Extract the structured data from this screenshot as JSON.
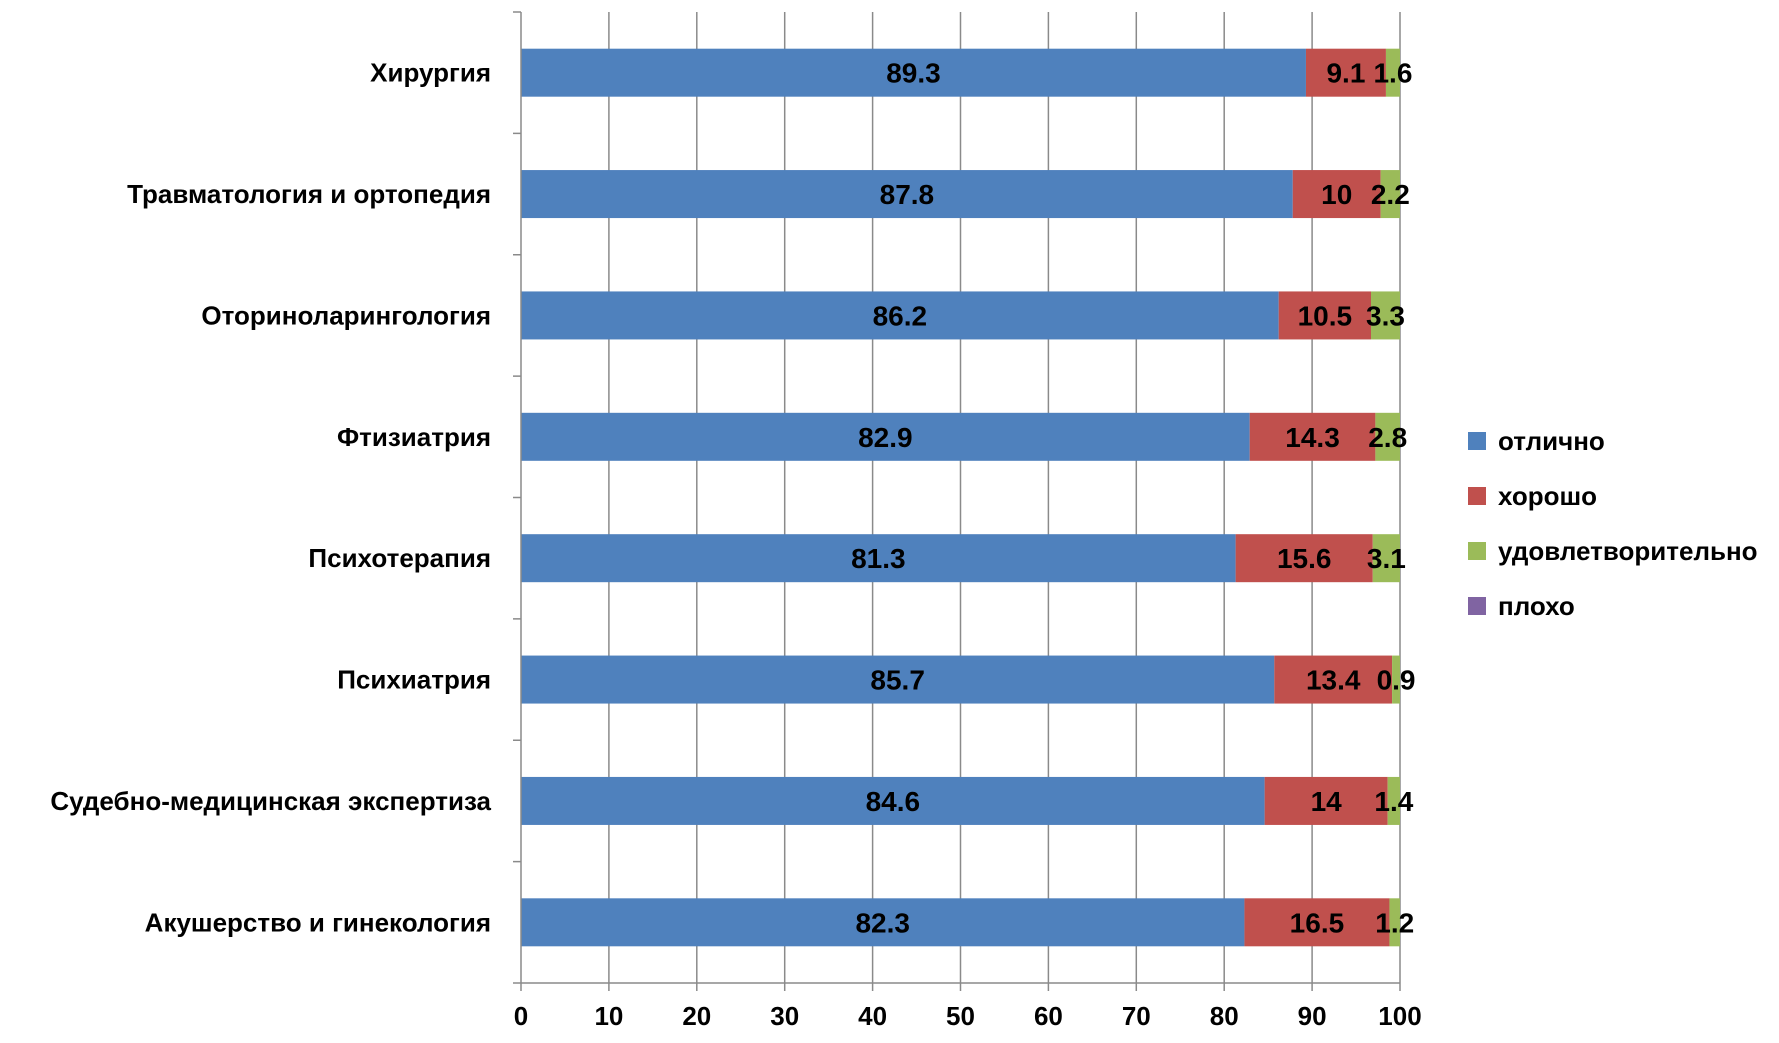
{
  "chart_data": {
    "type": "bar",
    "orientation": "horizontal",
    "stacked": true,
    "title": "",
    "xlabel": "",
    "ylabel": "",
    "xlim": [
      0,
      100
    ],
    "x_ticks": [
      "0",
      "10",
      "20",
      "30",
      "40",
      "50",
      "60",
      "70",
      "80",
      "90",
      "100"
    ],
    "grid": "vertical",
    "legend_position": "right",
    "categories": [
      "Хирургия",
      "Травматология и ортопедия",
      "Оториноларингология",
      "Фтизиатрия",
      "Психотерапия",
      "Психиатрия",
      "Судебно-медицинская экспертиза",
      "Акушерство и гинекология"
    ],
    "series": [
      {
        "name": "отлично",
        "color": "#4F81BD",
        "values": [
          89.3,
          87.8,
          86.2,
          82.9,
          81.3,
          85.7,
          84.6,
          82.3
        ],
        "labels": [
          "89.3",
          "87.8",
          "86.2",
          "82.9",
          "81.3",
          "85.7",
          "84.6",
          "82.3"
        ]
      },
      {
        "name": "хорошо",
        "color": "#C0504D",
        "values": [
          9.1,
          10,
          10.5,
          14.3,
          15.6,
          13.4,
          14,
          16.5
        ],
        "labels": [
          "9.1",
          "10",
          "10.5",
          "14.3",
          "15.6",
          "13.4",
          "14",
          "16.5"
        ]
      },
      {
        "name": "удовлетворительно",
        "color": "#9BBB59",
        "values": [
          1.6,
          2.2,
          3.3,
          2.8,
          3.1,
          0.9,
          1.4,
          1.2
        ],
        "labels": [
          "1.6",
          "2.2",
          "3.3",
          "2.8",
          "3.1",
          "0.9",
          "1.4",
          "1.2"
        ]
      },
      {
        "name": "плохо",
        "color": "#8064A2",
        "values": [
          0,
          0,
          0,
          0,
          0,
          0,
          0,
          0
        ],
        "labels": [
          "",
          "",
          "",
          "",
          "",
          "",
          "",
          ""
        ]
      }
    ]
  }
}
